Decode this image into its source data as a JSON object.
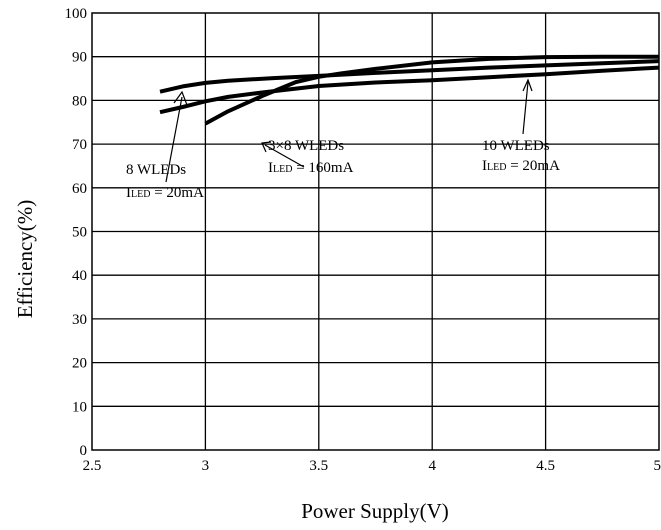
{
  "chart_data": {
    "type": "line",
    "title": "",
    "xlabel": "Power Supply(V)",
    "ylabel": "Efficiency(%)",
    "xlim": [
      2.5,
      5
    ],
    "ylim": [
      0,
      100
    ],
    "x_ticks": [
      2.5,
      3,
      3.5,
      4,
      4.5,
      5
    ],
    "x_tick_labels": [
      "2.5",
      "3",
      "3.5",
      "4",
      "4.5",
      "5"
    ],
    "y_ticks": [
      0,
      10,
      20,
      30,
      40,
      50,
      60,
      70,
      80,
      90,
      100
    ],
    "y_tick_labels": [
      "0",
      "10",
      "20",
      "30",
      "40",
      "50",
      "60",
      "70",
      "80",
      "90",
      "100"
    ],
    "grid": true,
    "series": [
      {
        "x": [
          2.8,
          2.9,
          3.0,
          3.1,
          3.2,
          3.3,
          3.5,
          3.75,
          4.0,
          4.25,
          4.5,
          4.75,
          5.0
        ],
        "y": [
          82,
          83.2,
          84,
          84.5,
          84.8,
          85.1,
          85.6,
          86.3,
          86.9,
          87.5,
          88,
          88.5,
          89
        ]
      },
      {
        "x": [
          2.8,
          2.9,
          3.0,
          3.1,
          3.25,
          3.5,
          3.75,
          4.0,
          4.25,
          4.5,
          4.75,
          5.0
        ],
        "y": [
          77.3,
          78.5,
          79.8,
          80.8,
          81.8,
          83.3,
          84.1,
          84.6,
          85.3,
          86,
          86.8,
          87.5
        ]
      },
      {
        "x": [
          3.0,
          3.1,
          3.25,
          3.4,
          3.5,
          3.6,
          3.75,
          4.0,
          4.25,
          4.5,
          4.75,
          5.0
        ],
        "y": [
          74.7,
          77.5,
          81,
          84.2,
          85.4,
          86.2,
          87.2,
          88.7,
          89.5,
          89.9,
          90,
          90
        ]
      }
    ],
    "annotations": [
      {
        "line1": "8 WLEDs",
        "line2_main": "I",
        "line2_sub": "LED",
        "line2_rest": " = 20mA"
      },
      {
        "line1": "3×8 WLEDs",
        "line2_main": "I",
        "line2_sub": "LED",
        "line2_rest": " = 160mA"
      },
      {
        "line1": "10 WLEDs",
        "line2_main": "I",
        "line2_sub": "LED",
        "line2_rest": " = 20mA"
      }
    ],
    "colors": {
      "line": "#000000",
      "grid": "#000000",
      "background": "#ffffff"
    }
  }
}
